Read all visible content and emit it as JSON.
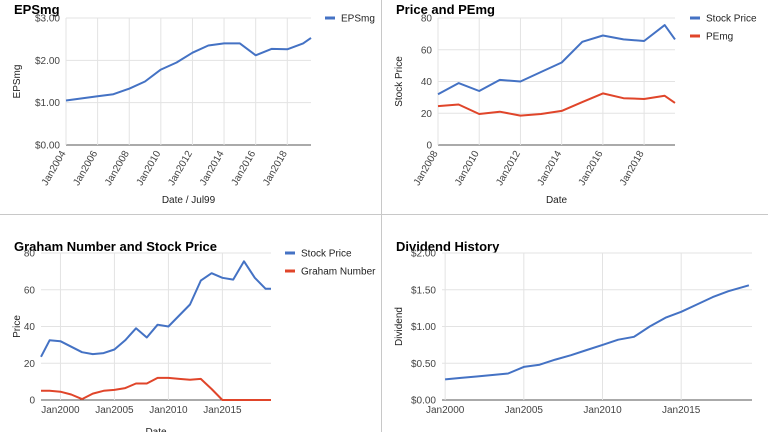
{
  "chart_data": [
    {
      "type": "line",
      "title": "EPSmg",
      "xlabel": "Date / Jul99",
      "ylabel": "EPSmg",
      "ylim": [
        0,
        3
      ],
      "yticks": [
        "$0.00",
        "$1.00",
        "$2.00",
        "$3.00"
      ],
      "ytick_values": [
        0,
        1,
        2,
        3
      ],
      "xlim": [
        2004,
        2019.5
      ],
      "xticks": [
        "Jan2004",
        "Jan2006",
        "Jan2008",
        "Jan2010",
        "Jan2012",
        "Jan2014",
        "Jan2016",
        "Jan2018"
      ],
      "xtick_values": [
        2004,
        2006,
        2008,
        2010,
        2012,
        2014,
        2016,
        2018
      ],
      "grid": true,
      "legend": "top-right",
      "series": [
        {
          "name": "EPSmg",
          "color": "#4472C4",
          "x": [
            2004,
            2005,
            2006,
            2007,
            2008,
            2009,
            2010,
            2011,
            2012,
            2013,
            2014,
            2015,
            2016,
            2017,
            2018,
            2019,
            2019.5
          ],
          "y": [
            1.05,
            1.1,
            1.15,
            1.2,
            1.33,
            1.5,
            1.78,
            1.95,
            2.18,
            2.35,
            2.4,
            2.4,
            2.12,
            2.27,
            2.26,
            2.4,
            2.53
          ]
        }
      ]
    },
    {
      "type": "line",
      "title": "Price and PEmg",
      "xlabel": "Date",
      "ylabel": "Stock Price",
      "ylim": [
        0,
        80
      ],
      "yticks": [
        "0",
        "20",
        "40",
        "60",
        "80"
      ],
      "ytick_values": [
        0,
        20,
        40,
        60,
        80
      ],
      "xlim": [
        2008,
        2019.5
      ],
      "xticks": [
        "Jan2008",
        "Jan2010",
        "Jan2012",
        "Jan2014",
        "Jan2016",
        "Jan2018"
      ],
      "xtick_values": [
        2008,
        2010,
        2012,
        2014,
        2016,
        2018
      ],
      "grid": true,
      "legend": "top-right",
      "series": [
        {
          "name": "Stock Price",
          "color": "#4472C4",
          "x": [
            2008,
            2009,
            2010,
            2011,
            2012,
            2013,
            2014,
            2015,
            2016,
            2017,
            2018,
            2019,
            2019.5
          ],
          "y": [
            32,
            39,
            34,
            41,
            40,
            46,
            52,
            65,
            69,
            66.5,
            65.5,
            75.5,
            66.5
          ]
        },
        {
          "name": "PEmg",
          "color": "#E0452A",
          "x": [
            2008,
            2009,
            2010,
            2011,
            2012,
            2013,
            2014,
            2015,
            2016,
            2017,
            2018,
            2019,
            2019.5
          ],
          "y": [
            24.5,
            25.5,
            19.5,
            21,
            18.5,
            19.5,
            21.5,
            27,
            32.5,
            29.5,
            29,
            31,
            26.5
          ]
        }
      ]
    },
    {
      "type": "line",
      "title": "Graham Number and Stock Price",
      "xlabel": "Date",
      "ylabel": "Price",
      "ylim": [
        0,
        80
      ],
      "yticks": [
        "0",
        "20",
        "40",
        "60",
        "80"
      ],
      "ytick_values": [
        0,
        20,
        40,
        60,
        80
      ],
      "xlim": [
        1998.2,
        2019.5
      ],
      "xticks": [
        "Jan2000",
        "Jan2005",
        "Jan2010",
        "Jan2015"
      ],
      "xtick_values": [
        2000,
        2005,
        2010,
        2015
      ],
      "grid": true,
      "legend": "top-right",
      "series": [
        {
          "name": "Stock Price",
          "color": "#4472C4",
          "x": [
            1998.2,
            1999,
            2000,
            2001,
            2002,
            2003,
            2004,
            2005,
            2006,
            2007,
            2008,
            2009,
            2010,
            2011,
            2012,
            2013,
            2014,
            2015,
            2016,
            2017,
            2018,
            2019,
            2019.5
          ],
          "y": [
            23.5,
            32.5,
            32,
            29,
            26,
            25,
            25.5,
            27.5,
            32.5,
            39,
            34,
            41,
            40,
            46,
            52,
            65,
            69,
            66.5,
            65.5,
            75.5,
            66.5,
            60.5,
            60.5
          ]
        },
        {
          "name": "Graham Number",
          "color": "#E0452A",
          "x": [
            1998.2,
            1999,
            2000,
            2001,
            2002,
            2003,
            2004,
            2005,
            2006,
            2007,
            2008,
            2009,
            2010,
            2011,
            2012,
            2013,
            2014,
            2015,
            2016,
            2017,
            2018,
            2019,
            2019.5
          ],
          "y": [
            5,
            5,
            4.5,
            3,
            0.5,
            3.5,
            5,
            5.5,
            6.5,
            9,
            9,
            12,
            12,
            11.5,
            11,
            11.5,
            6,
            0,
            0,
            0,
            0,
            0,
            0
          ]
        }
      ]
    },
    {
      "type": "line",
      "title": "Dividend History",
      "xlabel": "",
      "ylabel": "Dividend",
      "ylim": [
        0,
        2
      ],
      "yticks": [
        "$0.00",
        "$0.50",
        "$1.00",
        "$1.50",
        "$2.00"
      ],
      "ytick_values": [
        0,
        0.5,
        1,
        1.5,
        2
      ],
      "xlim": [
        1999.8,
        2019.5
      ],
      "xticks": [
        "Jan2000",
        "Jan2005",
        "Jan2010",
        "Jan2015"
      ],
      "xtick_values": [
        2000,
        2005,
        2010,
        2015
      ],
      "grid": true,
      "legend": "none",
      "series": [
        {
          "name": "",
          "color": "#4472C4",
          "x": [
            2000,
            2001,
            2002,
            2003,
            2004,
            2005,
            2006,
            2007,
            2008,
            2009,
            2010,
            2011,
            2012,
            2013,
            2014,
            2015,
            2016,
            2017,
            2018,
            2019.3
          ],
          "y": [
            0.28,
            0.3,
            0.32,
            0.34,
            0.36,
            0.45,
            0.48,
            0.55,
            0.61,
            0.68,
            0.75,
            0.82,
            0.86,
            1.0,
            1.12,
            1.2,
            1.3,
            1.4,
            1.48,
            1.56
          ]
        }
      ]
    }
  ]
}
